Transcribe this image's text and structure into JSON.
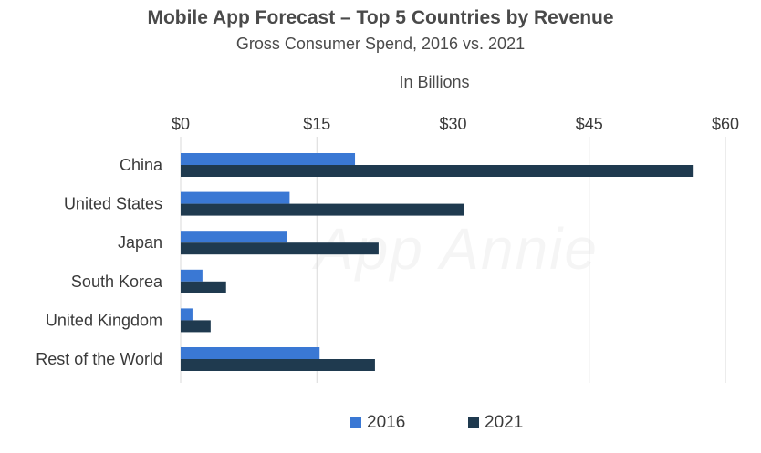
{
  "chart_data": {
    "type": "bar",
    "orientation": "horizontal",
    "title": "Mobile App Forecast – Top 5 Countries by Revenue",
    "subtitle": "Gross Consumer Spend, 2016 vs. 2021",
    "unit_label": "In Billions",
    "categories": [
      "China",
      "United States",
      "Japan",
      "South Korea",
      "United Kingdom",
      "Rest of the World"
    ],
    "series": [
      {
        "name": "2016",
        "color": "#3a78d4",
        "values": [
          19.2,
          12.0,
          11.7,
          2.4,
          1.3,
          15.3
        ]
      },
      {
        "name": "2021",
        "color": "#1f3a4f",
        "values": [
          56.5,
          31.2,
          21.8,
          5.0,
          3.3,
          21.4
        ]
      }
    ],
    "xlim": [
      0,
      60
    ],
    "xticks": [
      0,
      15,
      30,
      45,
      60
    ],
    "xtick_labels": [
      "$0",
      "$15",
      "$30",
      "$45",
      "$60"
    ],
    "grid": true,
    "legend_position": "bottom",
    "watermark": "App Annie"
  }
}
